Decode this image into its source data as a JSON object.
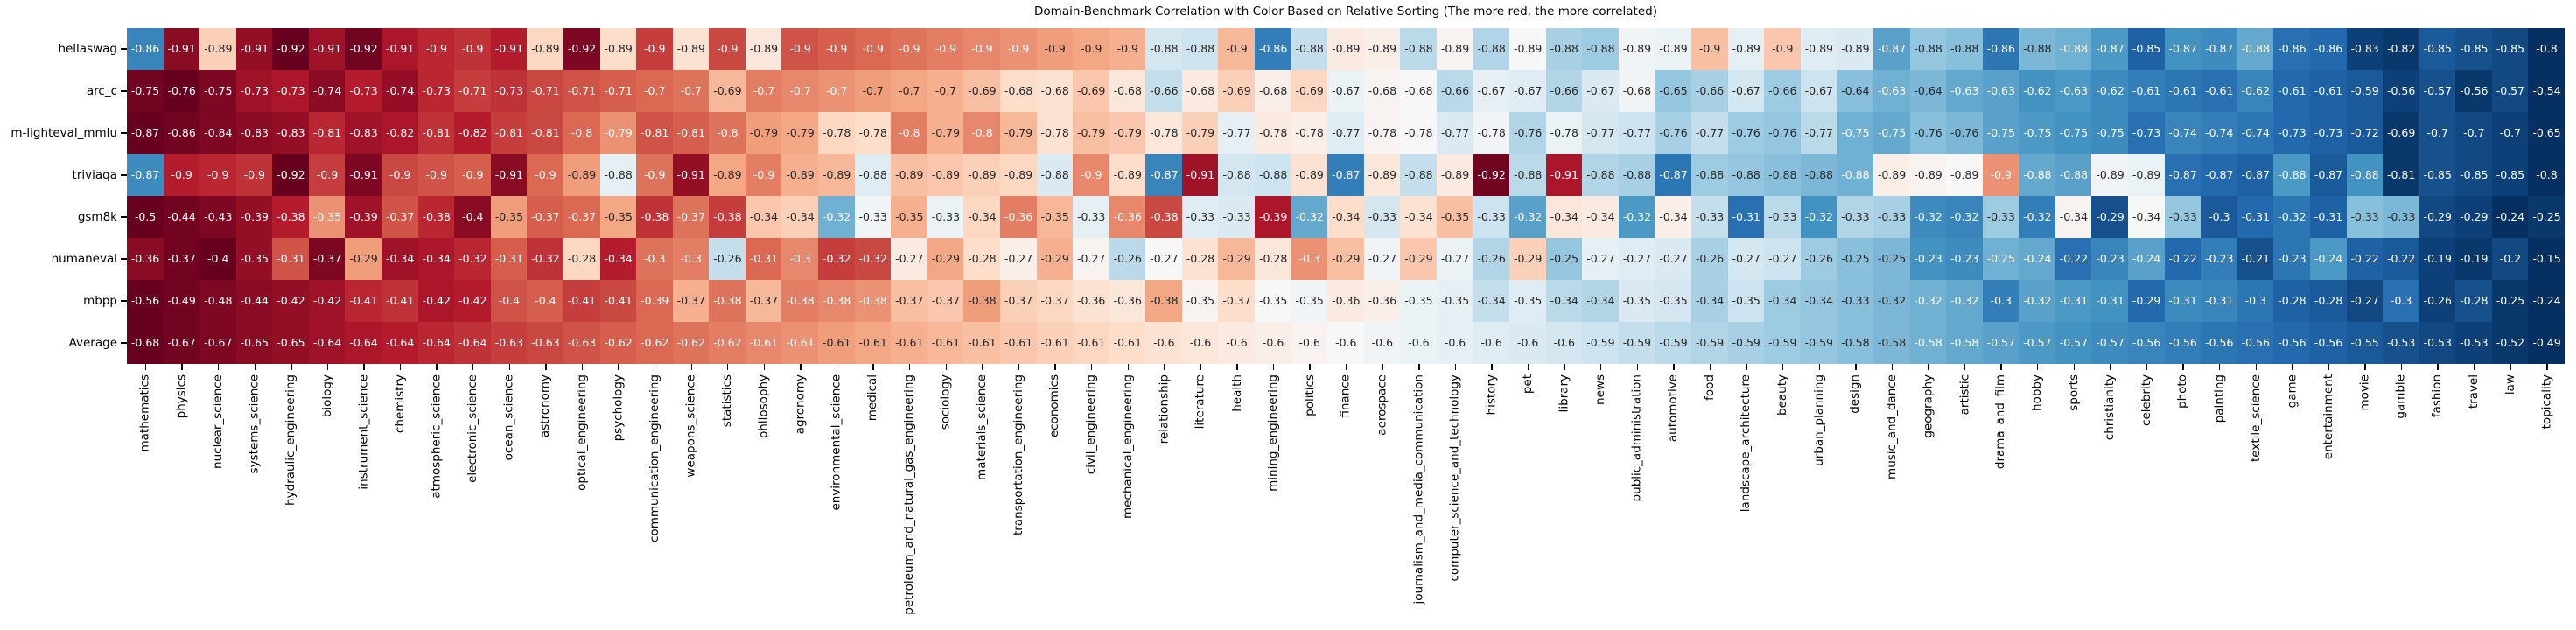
{
  "title": "Domain-Benchmark Correlation with Color Based on Relative Sorting (The more red, the more correlated)",
  "chart_data": {
    "type": "heatmap",
    "title": "Domain-Benchmark Correlation with Color Based on Relative Sorting (The more red, the more correlated)",
    "legend_position": "none",
    "grid": "off",
    "color_mode": "per-row rank: most negative value = dark red, least negative = dark blue",
    "colormap": "RdBu",
    "colormap_anchors": [
      "#67001f",
      "#b2182b",
      "#d6604d",
      "#f4a582",
      "#fddbc7",
      "#f7f7f7",
      "#d1e5f0",
      "#92c5de",
      "#4393c3",
      "#2166ac",
      "#053061"
    ],
    "text_colors": {
      "on_dark": "#ffffff",
      "on_light": "#262626"
    },
    "rows": [
      "hellaswag",
      "arc_c",
      "m-lighteval_mmlu",
      "triviaqa",
      "gsm8k",
      "humaneval",
      "mbpp",
      "Average"
    ],
    "columns": [
      "mathematics",
      "physics",
      "nuclear_science",
      "systems_science",
      "hydraulic_engineering",
      "biology",
      "instrument_science",
      "chemistry",
      "atmospheric_science",
      "electronic_science",
      "ocean_science",
      "astronomy",
      "optical_engineering",
      "psychology",
      "communication_engineering",
      "weapons_science",
      "statistics",
      "philosophy",
      "agronomy",
      "environmental_science",
      "medical",
      "petroleum_and_natural_gas_engineering",
      "sociology",
      "materials_science",
      "transportation_engineering",
      "economics",
      "civil_engineering",
      "mechanical_engineering",
      "relationship",
      "literature",
      "health",
      "mining_engineering",
      "politics",
      "finance",
      "aerospace",
      "journalism_and_media_communication",
      "computer_science_and_technology",
      "history",
      "pet",
      "library",
      "news",
      "public_administration",
      "automotive",
      "food",
      "landscape_architecture",
      "beauty",
      "urban_planning",
      "design",
      "music_and_dance",
      "geography",
      "artistic",
      "drama_and_film",
      "hobby",
      "sports",
      "christianity",
      "celebrity",
      "photo",
      "painting",
      "textile_science",
      "game",
      "entertainment",
      "movie",
      "gamble",
      "fashion",
      "travel",
      "law",
      "topicality"
    ],
    "values": [
      [
        -0.86,
        -0.91,
        -0.89,
        -0.91,
        -0.92,
        -0.91,
        -0.92,
        -0.91,
        -0.9,
        -0.9,
        -0.91,
        -0.89,
        -0.92,
        -0.89,
        -0.9,
        -0.89,
        -0.9,
        -0.89,
        -0.9,
        -0.9,
        -0.9,
        -0.9,
        -0.9,
        -0.9,
        -0.9,
        -0.9,
        -0.9,
        -0.9,
        -0.88,
        -0.88,
        -0.9,
        -0.86,
        -0.88,
        -0.89,
        -0.89,
        -0.88,
        -0.89,
        -0.88,
        -0.89,
        -0.88,
        -0.88,
        -0.89,
        -0.89,
        -0.9,
        -0.89,
        -0.9,
        -0.89,
        -0.89,
        -0.87,
        -0.88,
        -0.88,
        -0.86,
        -0.88,
        -0.88,
        -0.87,
        -0.85,
        -0.87,
        -0.87,
        -0.88,
        -0.86,
        -0.86,
        -0.83,
        -0.82,
        -0.85,
        -0.85,
        -0.85,
        -0.8
      ],
      [
        -0.75,
        -0.76,
        -0.75,
        -0.73,
        -0.73,
        -0.74,
        -0.73,
        -0.74,
        -0.73,
        -0.71,
        -0.73,
        -0.71,
        -0.71,
        -0.71,
        -0.7,
        -0.7,
        -0.69,
        -0.7,
        -0.7,
        -0.7,
        -0.7,
        -0.7,
        -0.7,
        -0.69,
        -0.68,
        -0.68,
        -0.69,
        -0.68,
        -0.66,
        -0.68,
        -0.69,
        -0.68,
        -0.69,
        -0.67,
        -0.68,
        -0.68,
        -0.66,
        -0.67,
        -0.67,
        -0.66,
        -0.67,
        -0.68,
        -0.65,
        -0.66,
        -0.67,
        -0.66,
        -0.67,
        -0.64,
        -0.63,
        -0.64,
        -0.63,
        -0.63,
        -0.62,
        -0.63,
        -0.62,
        -0.61,
        -0.61,
        -0.61,
        -0.62,
        -0.61,
        -0.61,
        -0.59,
        -0.56,
        -0.57,
        -0.56,
        -0.57,
        -0.54
      ],
      [
        -0.87,
        -0.86,
        -0.84,
        -0.83,
        -0.83,
        -0.81,
        -0.83,
        -0.82,
        -0.81,
        -0.82,
        -0.81,
        -0.81,
        -0.8,
        -0.79,
        -0.81,
        -0.81,
        -0.8,
        -0.79,
        -0.79,
        -0.78,
        -0.78,
        -0.8,
        -0.79,
        -0.8,
        -0.79,
        -0.78,
        -0.79,
        -0.79,
        -0.78,
        -0.79,
        -0.77,
        -0.78,
        -0.78,
        -0.77,
        -0.78,
        -0.78,
        -0.77,
        -0.78,
        -0.76,
        -0.78,
        -0.77,
        -0.77,
        -0.76,
        -0.77,
        -0.76,
        -0.76,
        -0.77,
        -0.75,
        -0.75,
        -0.76,
        -0.76,
        -0.75,
        -0.75,
        -0.75,
        -0.75,
        -0.73,
        -0.74,
        -0.74,
        -0.74,
        -0.73,
        -0.73,
        -0.72,
        -0.69,
        -0.7,
        -0.7,
        -0.7,
        -0.65
      ],
      [
        -0.87,
        -0.9,
        -0.9,
        -0.9,
        -0.92,
        -0.9,
        -0.91,
        -0.9,
        -0.9,
        -0.9,
        -0.91,
        -0.9,
        -0.89,
        -0.88,
        -0.9,
        -0.91,
        -0.89,
        -0.9,
        -0.89,
        -0.89,
        -0.88,
        -0.89,
        -0.89,
        -0.89,
        -0.89,
        -0.88,
        -0.9,
        -0.89,
        -0.87,
        -0.91,
        -0.88,
        -0.88,
        -0.89,
        -0.87,
        -0.89,
        -0.88,
        -0.89,
        -0.92,
        -0.88,
        -0.91,
        -0.88,
        -0.88,
        -0.87,
        -0.88,
        -0.88,
        -0.88,
        -0.88,
        -0.88,
        -0.89,
        -0.89,
        -0.89,
        -0.9,
        -0.88,
        -0.88,
        -0.89,
        -0.89,
        -0.87,
        -0.87,
        -0.87,
        -0.88,
        -0.87,
        -0.88,
        -0.81,
        -0.85,
        -0.85,
        -0.85,
        -0.8
      ],
      [
        -0.5,
        -0.44,
        -0.43,
        -0.39,
        -0.38,
        -0.35,
        -0.39,
        -0.37,
        -0.38,
        -0.4,
        -0.35,
        -0.37,
        -0.37,
        -0.35,
        -0.38,
        -0.37,
        -0.38,
        -0.34,
        -0.34,
        -0.32,
        -0.33,
        -0.35,
        -0.33,
        -0.34,
        -0.36,
        -0.35,
        -0.33,
        -0.36,
        -0.38,
        -0.33,
        -0.33,
        -0.39,
        -0.32,
        -0.34,
        -0.33,
        -0.34,
        -0.35,
        -0.33,
        -0.32,
        -0.34,
        -0.34,
        -0.32,
        -0.34,
        -0.33,
        -0.31,
        -0.33,
        -0.32,
        -0.33,
        -0.33,
        -0.32,
        -0.32,
        -0.33,
        -0.32,
        -0.34,
        -0.29,
        -0.34,
        -0.33,
        -0.3,
        -0.31,
        -0.32,
        -0.31,
        -0.33,
        -0.33,
        -0.29,
        -0.29,
        -0.24,
        -0.25
      ],
      [
        -0.36,
        -0.37,
        -0.4,
        -0.35,
        -0.31,
        -0.37,
        -0.29,
        -0.34,
        -0.34,
        -0.32,
        -0.31,
        -0.32,
        -0.28,
        -0.34,
        -0.3,
        -0.3,
        -0.26,
        -0.31,
        -0.3,
        -0.32,
        -0.32,
        -0.27,
        -0.29,
        -0.28,
        -0.27,
        -0.29,
        -0.27,
        -0.26,
        -0.27,
        -0.28,
        -0.29,
        -0.28,
        -0.3,
        -0.29,
        -0.27,
        -0.29,
        -0.27,
        -0.26,
        -0.29,
        -0.25,
        -0.27,
        -0.27,
        -0.27,
        -0.26,
        -0.27,
        -0.27,
        -0.26,
        -0.25,
        -0.25,
        -0.23,
        -0.23,
        -0.25,
        -0.24,
        -0.22,
        -0.23,
        -0.24,
        -0.22,
        -0.23,
        -0.21,
        -0.23,
        -0.24,
        -0.22,
        -0.22,
        -0.19,
        -0.19,
        -0.2,
        -0.15
      ],
      [
        -0.56,
        -0.49,
        -0.48,
        -0.44,
        -0.42,
        -0.42,
        -0.41,
        -0.41,
        -0.42,
        -0.42,
        -0.4,
        -0.4,
        -0.41,
        -0.41,
        -0.39,
        -0.37,
        -0.38,
        -0.37,
        -0.38,
        -0.38,
        -0.38,
        -0.37,
        -0.37,
        -0.38,
        -0.37,
        -0.37,
        -0.36,
        -0.36,
        -0.38,
        -0.35,
        -0.37,
        -0.35,
        -0.35,
        -0.36,
        -0.36,
        -0.35,
        -0.35,
        -0.34,
        -0.35,
        -0.34,
        -0.34,
        -0.35,
        -0.35,
        -0.34,
        -0.35,
        -0.34,
        -0.34,
        -0.33,
        -0.32,
        -0.32,
        -0.32,
        -0.3,
        -0.32,
        -0.31,
        -0.31,
        -0.29,
        -0.31,
        -0.31,
        -0.3,
        -0.28,
        -0.28,
        -0.27,
        -0.3,
        -0.26,
        -0.28,
        -0.25,
        -0.24
      ],
      [
        -0.68,
        -0.67,
        -0.67,
        -0.65,
        -0.65,
        -0.64,
        -0.64,
        -0.64,
        -0.64,
        -0.64,
        -0.63,
        -0.63,
        -0.63,
        -0.62,
        -0.62,
        -0.62,
        -0.62,
        -0.61,
        -0.61,
        -0.61,
        -0.61,
        -0.61,
        -0.61,
        -0.61,
        -0.61,
        -0.61,
        -0.61,
        -0.61,
        -0.6,
        -0.6,
        -0.6,
        -0.6,
        -0.6,
        -0.6,
        -0.6,
        -0.6,
        -0.6,
        -0.6,
        -0.6,
        -0.6,
        -0.59,
        -0.59,
        -0.59,
        -0.59,
        -0.59,
        -0.59,
        -0.59,
        -0.58,
        -0.58,
        -0.58,
        -0.58,
        -0.57,
        -0.57,
        -0.57,
        -0.57,
        -0.56,
        -0.56,
        -0.56,
        -0.56,
        -0.56,
        -0.56,
        -0.55,
        -0.53,
        -0.53,
        -0.53,
        -0.52,
        -0.49
      ]
    ]
  }
}
